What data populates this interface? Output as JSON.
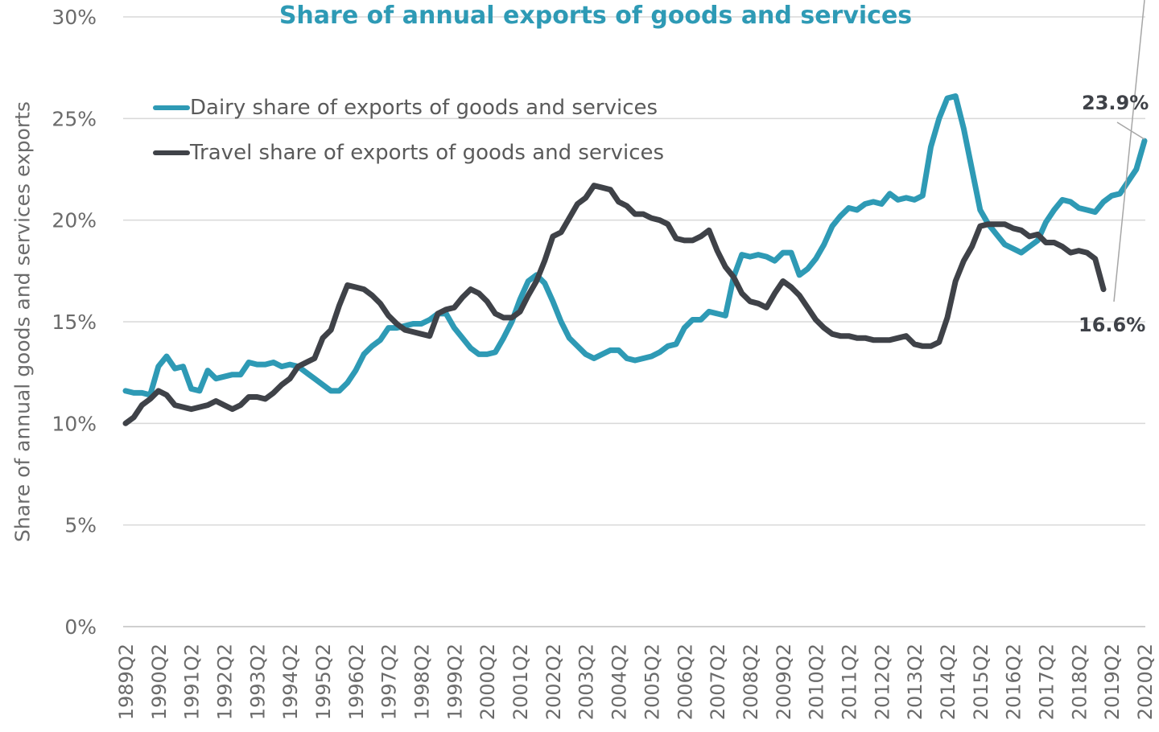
{
  "chart_data": {
    "type": "line",
    "title": "Share of annual exports of goods and services",
    "ylabel": "Share of annual goods and services exports",
    "xlabel": "",
    "ylim": [
      0,
      30
    ],
    "y_ticks": [
      "0%",
      "5%",
      "10%",
      "15%",
      "20%",
      "25%",
      "30%"
    ],
    "y_tick_values": [
      0,
      5,
      10,
      15,
      20,
      25,
      30
    ],
    "x_tick_labels": [
      "1989Q2",
      "1990Q2",
      "1991Q2",
      "1992Q2",
      "1993Q2",
      "1994Q2",
      "1995Q2",
      "1996Q2",
      "1997Q2",
      "1998Q2",
      "1999Q2",
      "2000Q2",
      "2001Q2",
      "2002Q2",
      "2003Q2",
      "2004Q2",
      "2005Q2",
      "2006Q2",
      "2007Q2",
      "2008Q2",
      "2009Q2",
      "2010Q2",
      "2011Q2",
      "2012Q2",
      "2013Q2",
      "2014Q2",
      "2015Q2",
      "2016Q2",
      "2017Q2",
      "2018Q2",
      "2019Q2",
      "2020Q2"
    ],
    "grid": true,
    "legend_position": "top-left",
    "series": [
      {
        "name": "Dairy share of exports of goods and services",
        "color": "#2E9AB5",
        "end_label": "23.9%",
        "values": [
          11.6,
          11.5,
          11.5,
          11.4,
          12.8,
          13.3,
          12.7,
          12.8,
          11.7,
          11.6,
          12.6,
          12.2,
          12.3,
          12.4,
          12.4,
          13.0,
          12.9,
          12.9,
          13.0,
          12.8,
          12.9,
          12.8,
          12.5,
          12.2,
          11.9,
          11.6,
          11.6,
          12.0,
          12.6,
          13.4,
          13.8,
          14.1,
          14.7,
          14.7,
          14.8,
          14.9,
          14.9,
          15.1,
          15.4,
          15.4,
          14.7,
          14.2,
          13.7,
          13.4,
          13.4,
          13.5,
          14.2,
          15.0,
          16.1,
          17.0,
          17.3,
          16.9,
          16.0,
          15.0,
          14.2,
          13.8,
          13.4,
          13.2,
          13.4,
          13.6,
          13.6,
          13.2,
          13.1,
          13.2,
          13.3,
          13.5,
          13.8,
          13.9,
          14.7,
          15.1,
          15.1,
          15.5,
          15.4,
          15.3,
          17.2,
          18.3,
          18.2,
          18.3,
          18.2,
          18.0,
          18.4,
          18.4,
          17.3,
          17.6,
          18.1,
          18.8,
          19.7,
          20.2,
          20.6,
          20.5,
          20.8,
          20.9,
          20.8,
          21.3,
          21.0,
          21.1,
          21.0,
          21.2,
          23.6,
          25.0,
          26.0,
          26.1,
          24.5,
          22.5,
          20.5,
          19.8,
          19.3,
          18.8,
          18.6,
          18.4,
          18.7,
          19.0,
          19.9,
          20.5,
          21.0,
          20.9,
          20.6,
          20.5,
          20.4,
          20.9,
          21.2,
          21.3,
          21.9,
          22.5,
          23.9
        ]
      },
      {
        "name": "Travel share of exports of goods and services",
        "color": "#3F4248",
        "end_label": "16.6%",
        "values": [
          10.0,
          10.3,
          10.9,
          11.2,
          11.6,
          11.4,
          10.9,
          10.8,
          10.7,
          10.8,
          10.9,
          11.1,
          10.9,
          10.7,
          10.9,
          11.3,
          11.3,
          11.2,
          11.5,
          11.9,
          12.2,
          12.8,
          13.0,
          13.2,
          14.2,
          14.6,
          15.8,
          16.8,
          16.7,
          16.6,
          16.3,
          15.9,
          15.3,
          14.9,
          14.6,
          14.5,
          14.4,
          14.3,
          15.4,
          15.6,
          15.7,
          16.2,
          16.6,
          16.4,
          16.0,
          15.4,
          15.2,
          15.2,
          15.5,
          16.3,
          17.0,
          18.0,
          19.2,
          19.4,
          20.1,
          20.8,
          21.1,
          21.7,
          21.6,
          21.5,
          20.9,
          20.7,
          20.3,
          20.3,
          20.1,
          20.0,
          19.8,
          19.1,
          19.0,
          19.0,
          19.2,
          19.5,
          18.5,
          17.7,
          17.2,
          16.4,
          16.0,
          15.9,
          15.7,
          16.4,
          17.0,
          16.7,
          16.3,
          15.7,
          15.1,
          14.7,
          14.4,
          14.3,
          14.3,
          14.2,
          14.2,
          14.1,
          14.1,
          14.1,
          14.2,
          14.3,
          13.9,
          13.8,
          13.8,
          14.0,
          15.2,
          17.0,
          18.0,
          18.7,
          19.7,
          19.8,
          19.8,
          19.8,
          19.6,
          19.5,
          19.2,
          19.3,
          18.9,
          18.9,
          18.7,
          18.4,
          18.5,
          18.4,
          18.1,
          16.6
        ]
      }
    ]
  }
}
